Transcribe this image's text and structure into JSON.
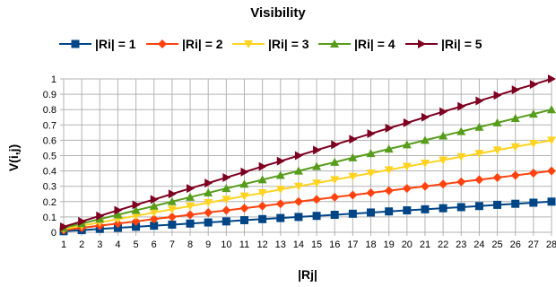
{
  "chart_data": {
    "type": "line",
    "title": "Visibility",
    "xlabel": "|Rj|",
    "ylabel": "V(i,j)",
    "categories": [
      1,
      2,
      3,
      4,
      5,
      6,
      7,
      8,
      9,
      10,
      11,
      12,
      13,
      14,
      15,
      16,
      17,
      18,
      19,
      20,
      21,
      22,
      23,
      24,
      25,
      26,
      27,
      28
    ],
    "ylim": [
      0,
      1
    ],
    "yticks": [
      "0",
      "0.1",
      "0.2",
      "0.3",
      "0.4",
      "0.5",
      "0.6",
      "0.7",
      "0.8",
      "0.9",
      "1"
    ],
    "grid": true,
    "legend_position": "top",
    "series": [
      {
        "name": "|Ri| = 1",
        "color": "#004586",
        "marker": "square",
        "values": [
          0.007,
          0.014,
          0.022,
          0.029,
          0.036,
          0.043,
          0.05,
          0.057,
          0.064,
          0.071,
          0.079,
          0.086,
          0.093,
          0.1,
          0.107,
          0.114,
          0.121,
          0.129,
          0.136,
          0.143,
          0.15,
          0.157,
          0.164,
          0.171,
          0.179,
          0.186,
          0.193,
          0.2
        ]
      },
      {
        "name": "|Ri| = 2",
        "color": "#ff420e",
        "marker": "diamond",
        "values": [
          0.014,
          0.029,
          0.043,
          0.057,
          0.071,
          0.086,
          0.1,
          0.114,
          0.129,
          0.143,
          0.157,
          0.171,
          0.186,
          0.2,
          0.214,
          0.229,
          0.243,
          0.257,
          0.271,
          0.286,
          0.3,
          0.314,
          0.329,
          0.343,
          0.357,
          0.371,
          0.386,
          0.4
        ]
      },
      {
        "name": "|Ri| = 3",
        "color": "#ffd320",
        "marker": "triangle-down",
        "values": [
          0.021,
          0.043,
          0.064,
          0.086,
          0.107,
          0.129,
          0.15,
          0.171,
          0.193,
          0.214,
          0.236,
          0.257,
          0.279,
          0.3,
          0.321,
          0.343,
          0.364,
          0.386,
          0.407,
          0.429,
          0.45,
          0.471,
          0.493,
          0.514,
          0.536,
          0.557,
          0.579,
          0.6
        ]
      },
      {
        "name": "|Ri| = 4",
        "color": "#579d1c",
        "marker": "triangle-up",
        "values": [
          0.029,
          0.057,
          0.086,
          0.114,
          0.143,
          0.171,
          0.2,
          0.229,
          0.257,
          0.286,
          0.314,
          0.343,
          0.371,
          0.4,
          0.429,
          0.457,
          0.486,
          0.514,
          0.543,
          0.571,
          0.6,
          0.629,
          0.657,
          0.686,
          0.714,
          0.743,
          0.771,
          0.8
        ]
      },
      {
        "name": "|Ri| = 5",
        "color": "#7e0021",
        "marker": "triangle-right",
        "values": [
          0.036,
          0.071,
          0.107,
          0.143,
          0.179,
          0.214,
          0.25,
          0.286,
          0.321,
          0.357,
          0.393,
          0.429,
          0.464,
          0.5,
          0.536,
          0.571,
          0.607,
          0.643,
          0.679,
          0.714,
          0.75,
          0.786,
          0.821,
          0.857,
          0.893,
          0.929,
          0.964,
          1.0
        ]
      }
    ]
  }
}
